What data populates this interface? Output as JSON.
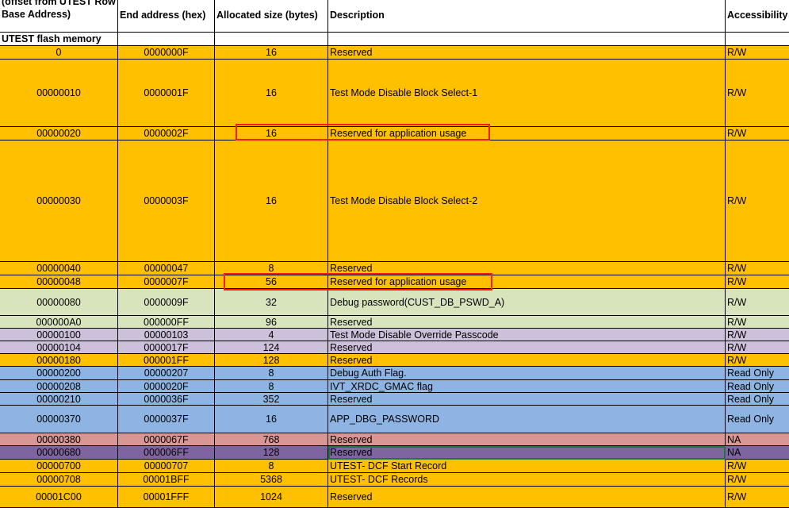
{
  "header": {
    "start": "Start address (hex) (offset from UTEST Row Base Address)",
    "end": "End address (hex)",
    "size": "Allocated size (bytes)",
    "desc": "Description",
    "access": "Accessibility"
  },
  "section": "UTEST flash memory",
  "colors": {
    "orange": "#FFC000",
    "green": "#D8E4BC",
    "lavender": "#CCC0DA",
    "blue": "#8DB4E2",
    "pink": "#DA9694",
    "purple": "#8064A2",
    "highlight": "#FF1A1A"
  },
  "rows": [
    {
      "start": "0",
      "end": "0000000F",
      "size": "16",
      "desc": "Reserved",
      "access": "R/W",
      "color": "orange"
    },
    {
      "start": "00000010",
      "end": "0000001F",
      "size": "16",
      "desc": "Test Mode Disable Block Select-1",
      "access": "R/W",
      "color": "orange"
    },
    {
      "start": "00000020",
      "end": "0000002F",
      "size": "16",
      "desc": "Reserved for application usage",
      "access": "R/W",
      "color": "orange",
      "highlighted": true
    },
    {
      "start": "00000030",
      "end": "0000003F",
      "size": "16",
      "desc": "Test Mode Disable Block Select-2",
      "access": "R/W",
      "color": "orange"
    },
    {
      "start": "00000040",
      "end": "00000047",
      "size": "8",
      "desc": "Reserved",
      "access": "R/W",
      "color": "orange"
    },
    {
      "start": "00000048",
      "end": "0000007F",
      "size": "56",
      "desc": "Reserved for application usage",
      "access": "R/W",
      "color": "orange",
      "highlighted": true
    },
    {
      "start": "00000080",
      "end": "0000009F",
      "size": "32",
      "desc": "Debug password(CUST_DB_PSWD_A)",
      "access": "R/W",
      "color": "green"
    },
    {
      "start": "000000A0",
      "end": "000000FF",
      "size": "96",
      "desc": "Reserved",
      "access": "R/W",
      "color": "green"
    },
    {
      "start": "00000100",
      "end": "00000103",
      "size": "4",
      "desc": "Test Mode Disable Override Passcode",
      "access": "R/W",
      "color": "lavender"
    },
    {
      "start": "00000104",
      "end": "0000017F",
      "size": "124",
      "desc": "Reserved",
      "access": "R/W",
      "color": "lavender"
    },
    {
      "start": "00000180",
      "end": "000001FF",
      "size": "128",
      "desc": "Reserved",
      "access": "R/W",
      "color": "orange"
    },
    {
      "start": "00000200",
      "end": "00000207",
      "size": "8",
      "desc": "Debug Auth Flag.",
      "access": "Read Only",
      "color": "blue"
    },
    {
      "start": "00000208",
      "end": "0000020F",
      "size": "8",
      "desc": "IVT_XRDC_GMAC flag",
      "access": "Read Only",
      "color": "blue"
    },
    {
      "start": "00000210",
      "end": "0000036F",
      "size": "352",
      "desc": "Reserved",
      "access": "Read Only",
      "color": "blue"
    },
    {
      "start": "00000370",
      "end": "0000037F",
      "size": "16",
      "desc": "APP_DBG_PASSWORD",
      "access": "Read Only",
      "color": "blue"
    },
    {
      "start": "00000380",
      "end": "0000067F",
      "size": "768",
      "desc": "Reserved",
      "access": "NA",
      "color": "pink"
    },
    {
      "start": "00000680",
      "end": "000006FF",
      "size": "128",
      "desc": "Reserved",
      "access": "NA",
      "color": "purple",
      "selected": true
    },
    {
      "start": "00000700",
      "end": "00000707",
      "size": "8",
      "desc": "UTEST- DCF Start Record",
      "access": "R/W",
      "color": "orange"
    },
    {
      "start": "00000708",
      "end": "00001BFF",
      "size": "5368",
      "desc": "UTEST- DCF Records",
      "access": "R/W",
      "color": "orange"
    },
    {
      "start": "00001C00",
      "end": "00001FFF",
      "size": "1024",
      "desc": "Reserved",
      "access": "R/W",
      "color": "orange"
    }
  ]
}
